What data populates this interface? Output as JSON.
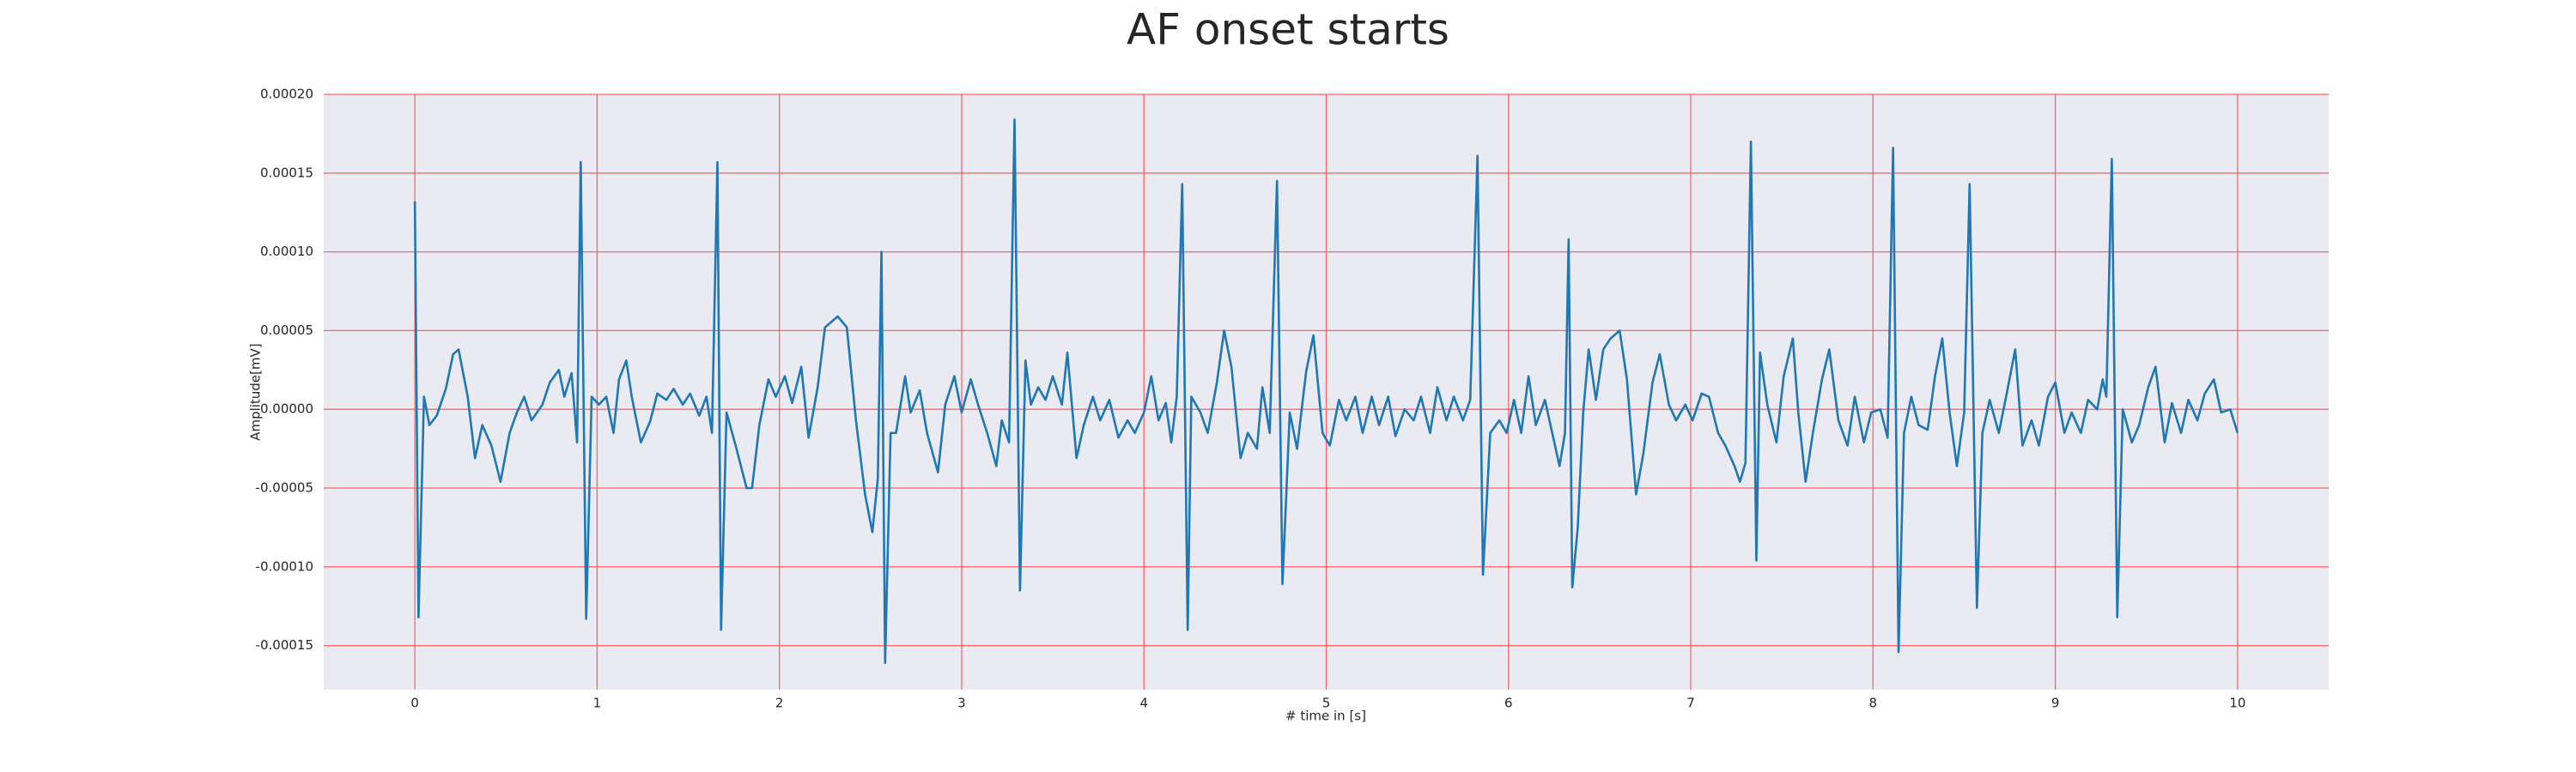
{
  "chart_data": {
    "type": "line",
    "title": "AF onset starts",
    "xlabel": "# time in [s]",
    "ylabel": "Amplitude[mV]",
    "color": "#1f77b4",
    "grid": true,
    "grid_color": "#ff4d4d",
    "background": "#eaeaf2",
    "xlim": [
      -0.5,
      10.5
    ],
    "ylim": [
      -0.000178,
      0.0002
    ],
    "xticks": [
      0,
      1,
      2,
      3,
      4,
      5,
      6,
      7,
      8,
      9,
      10
    ],
    "yticks": [
      {
        "value": -0.00015,
        "label": "-0.00015"
      },
      {
        "value": -0.0001,
        "label": "-0.00010"
      },
      {
        "value": -5e-05,
        "label": "-0.00005"
      },
      {
        "value": 0,
        "label": "0.00000"
      },
      {
        "value": 5e-05,
        "label": "0.00005"
      },
      {
        "value": 0.0001,
        "label": "0.00010"
      },
      {
        "value": 0.00015,
        "label": "0.00015"
      },
      {
        "value": 0.0002,
        "label": "0.00020"
      }
    ],
    "x": [
      0,
      0.02,
      0.05,
      0.08,
      0.12,
      0.17,
      0.21,
      0.24,
      0.29,
      0.33,
      0.37,
      0.42,
      0.47,
      0.52,
      0.56,
      0.6,
      0.64,
      0.7,
      0.74,
      0.79,
      0.82,
      0.86,
      0.89,
      0.91,
      0.94,
      0.97,
      1.01,
      1.05,
      1.09,
      1.12,
      1.16,
      1.19,
      1.24,
      1.29,
      1.33,
      1.38,
      1.42,
      1.47,
      1.51,
      1.56,
      1.6,
      1.63,
      1.66,
      1.68,
      1.71,
      1.76,
      1.82,
      1.85,
      1.89,
      1.94,
      1.98,
      2.03,
      2.07,
      2.12,
      2.16,
      2.21,
      2.25,
      2.32,
      2.37,
      2.42,
      2.47,
      2.51,
      2.54,
      2.56,
      2.58,
      2.61,
      2.64,
      2.69,
      2.72,
      2.77,
      2.81,
      2.87,
      2.91,
      2.96,
      3.0,
      3.05,
      3.09,
      3.14,
      3.19,
      3.22,
      3.26,
      3.29,
      3.32,
      3.35,
      3.38,
      3.42,
      3.46,
      3.5,
      3.55,
      3.58,
      3.63,
      3.67,
      3.72,
      3.76,
      3.81,
      3.86,
      3.91,
      3.95,
      4.0,
      4.04,
      4.08,
      4.12,
      4.15,
      4.18,
      4.21,
      4.24,
      4.26,
      4.31,
      4.35,
      4.4,
      4.44,
      4.48,
      4.53,
      4.57,
      4.62,
      4.65,
      4.69,
      4.73,
      4.76,
      4.8,
      4.84,
      4.89,
      4.93,
      4.98,
      5.02,
      5.07,
      5.11,
      5.16,
      5.2,
      5.25,
      5.29,
      5.34,
      5.38,
      5.43,
      5.48,
      5.52,
      5.57,
      5.61,
      5.66,
      5.7,
      5.75,
      5.79,
      5.83,
      5.86,
      5.9,
      5.95,
      5.99,
      6.03,
      6.07,
      6.11,
      6.15,
      6.2,
      6.24,
      6.28,
      6.31,
      6.33,
      6.35,
      6.38,
      6.41,
      6.44,
      6.48,
      6.52,
      6.56,
      6.61,
      6.65,
      6.7,
      6.74,
      6.79,
      6.83,
      6.88,
      6.92,
      6.97,
      7.01,
      7.06,
      7.1,
      7.15,
      7.19,
      7.24,
      7.27,
      7.3,
      7.33,
      7.36,
      7.38,
      7.42,
      7.47,
      7.51,
      7.56,
      7.59,
      7.63,
      7.67,
      7.72,
      7.76,
      7.81,
      7.86,
      7.9,
      7.95,
      7.99,
      8.04,
      8.08,
      8.11,
      8.14,
      8.17,
      8.21,
      8.25,
      8.3,
      8.34,
      8.38,
      8.42,
      8.46,
      8.5,
      8.53,
      8.57,
      8.6,
      8.64,
      8.69,
      8.73,
      8.78,
      8.82,
      8.87,
      8.91,
      8.96,
      9.0,
      9.05,
      9.09,
      9.14,
      9.18,
      9.23,
      9.26,
      9.28,
      9.31,
      9.34,
      9.37,
      9.42,
      9.46,
      9.51,
      9.55,
      9.6,
      9.64,
      9.69,
      9.73,
      9.78,
      9.82,
      9.87,
      9.91,
      9.96,
      10.0
    ],
    "values": [
      0.000132,
      -0.000132,
      8e-06,
      -1e-05,
      -4e-06,
      1.3e-05,
      3.5e-05,
      3.8e-05,
      8e-06,
      -3.1e-05,
      -1e-05,
      -2.3e-05,
      -4.6e-05,
      -1.5e-05,
      -2e-06,
      8e-06,
      -7e-06,
      3e-06,
      1.7e-05,
      2.5e-05,
      8e-06,
      2.3e-05,
      -2.1e-05,
      0.000157,
      -0.000133,
      8e-06,
      3e-06,
      8e-06,
      -1.5e-05,
      1.9e-05,
      3.1e-05,
      8e-06,
      -2.1e-05,
      -8e-06,
      1e-05,
      6e-06,
      1.3e-05,
      3e-06,
      1e-05,
      -4e-06,
      8e-06,
      -1.5e-05,
      0.000157,
      -0.00014,
      -2e-06,
      -2.3e-05,
      -5e-05,
      -5e-05,
      -1e-05,
      1.9e-05,
      8e-06,
      2.1e-05,
      4e-06,
      2.7e-05,
      -1.8e-05,
      1.4e-05,
      5.2e-05,
      5.9e-05,
      5.2e-05,
      -7e-06,
      -5.4e-05,
      -7.8e-05,
      -4.4e-05,
      0.0001,
      -0.000161,
      -1.5e-05,
      -1.5e-05,
      2.1e-05,
      -2e-06,
      1.2e-05,
      -1.5e-05,
      -4e-05,
      3e-06,
      2.1e-05,
      -2e-06,
      1.9e-05,
      3e-06,
      -1.5e-05,
      -3.6e-05,
      -7e-06,
      -2.1e-05,
      0.000184,
      -0.000115,
      3.1e-05,
      3e-06,
      1.4e-05,
      6e-06,
      2.1e-05,
      3e-06,
      3.6e-05,
      -3.1e-05,
      -1e-05,
      8e-06,
      -7e-06,
      6e-06,
      -1.8e-05,
      -7e-06,
      -1.5e-05,
      -2e-06,
      2.1e-05,
      -7e-06,
      4e-06,
      -2.1e-05,
      8e-06,
      0.000143,
      -0.00014,
      8e-06,
      -2e-06,
      -1.5e-05,
      1.7e-05,
      5e-05,
      2.7e-05,
      -3.1e-05,
      -1.5e-05,
      -2.5e-05,
      1.4e-05,
      -1.5e-05,
      0.000145,
      -0.000111,
      -2e-06,
      -2.5e-05,
      2.4e-05,
      4.7e-05,
      -1.5e-05,
      -2.3e-05,
      6e-06,
      -7e-06,
      8e-06,
      -1.5e-05,
      8e-06,
      -1e-05,
      8e-06,
      -1.7e-05,
      0,
      -7e-06,
      8e-06,
      -1.5e-05,
      1.4e-05,
      -7e-06,
      8e-06,
      -7e-06,
      6e-06,
      0.000161,
      -0.000105,
      -1.5e-05,
      -7e-06,
      -1.5e-05,
      6e-06,
      -1.5e-05,
      2.1e-05,
      -1e-05,
      6e-06,
      -1.5e-05,
      -3.6e-05,
      -1.5e-05,
      0.000108,
      -0.000113,
      -7.5e-05,
      -2e-06,
      3.8e-05,
      6e-06,
      3.8e-05,
      4.5e-05,
      5e-05,
      1.9e-05,
      -5.4e-05,
      -2.8e-05,
      1.7e-05,
      3.5e-05,
      3e-06,
      -7e-06,
      3e-06,
      -7e-06,
      1e-05,
      8e-06,
      -1.5e-05,
      -2.3e-05,
      -3.6e-05,
      -4.6e-05,
      -3.4e-05,
      0.00017,
      -9.6e-05,
      3.6e-05,
      3e-06,
      -2.1e-05,
      2.1e-05,
      4.5e-05,
      -2e-06,
      -4.6e-05,
      -1.5e-05,
      1.9e-05,
      3.8e-05,
      -7e-06,
      -2.3e-05,
      8e-06,
      -2.1e-05,
      -2e-06,
      0,
      -1.8e-05,
      0.000166,
      -0.000154,
      -1.5e-05,
      8e-06,
      -1e-05,
      -1.3e-05,
      2.1e-05,
      4.5e-05,
      -2e-06,
      -3.6e-05,
      -2e-06,
      0.000143,
      -0.000126,
      -1.5e-05,
      6e-06,
      -1.5e-05,
      8e-06,
      3.8e-05,
      -2.3e-05,
      -7e-06,
      -2.3e-05,
      8e-06,
      1.7e-05,
      -1.5e-05,
      -2e-06,
      -1.5e-05,
      6e-06,
      0,
      1.9e-05,
      8e-06,
      0.000159,
      -0.000132,
      0,
      -2.1e-05,
      -1e-05,
      1.4e-05,
      2.7e-05,
      -2.1e-05,
      4e-06,
      -1.5e-05,
      6e-06,
      -7e-06,
      1e-05,
      1.9e-05,
      -2e-06,
      0,
      -1.5e-05
    ]
  }
}
